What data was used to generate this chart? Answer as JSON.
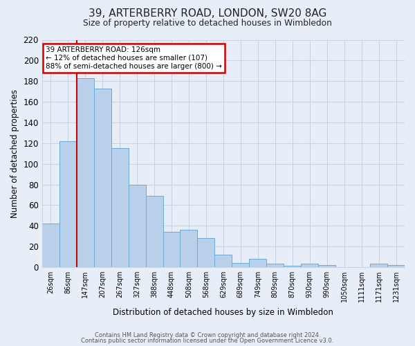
{
  "title": "39, ARTERBERRY ROAD, LONDON, SW20 8AG",
  "subtitle": "Size of property relative to detached houses in Wimbledon",
  "xlabel": "Distribution of detached houses by size in Wimbledon",
  "ylabel": "Number of detached properties",
  "bar_labels": [
    "26sqm",
    "86sqm",
    "147sqm",
    "207sqm",
    "267sqm",
    "327sqm",
    "388sqm",
    "448sqm",
    "508sqm",
    "568sqm",
    "629sqm",
    "689sqm",
    "749sqm",
    "809sqm",
    "870sqm",
    "930sqm",
    "990sqm",
    "1050sqm",
    "1111sqm",
    "1171sqm",
    "1231sqm"
  ],
  "bar_values": [
    42,
    122,
    183,
    173,
    115,
    80,
    69,
    34,
    36,
    28,
    12,
    4,
    8,
    3,
    1,
    3,
    2,
    0,
    0,
    3,
    2
  ],
  "bar_color": "#b8d0ea",
  "bar_edge_color": "#6aaad4",
  "ylim": [
    0,
    220
  ],
  "yticks": [
    0,
    20,
    40,
    60,
    80,
    100,
    120,
    140,
    160,
    180,
    200,
    220
  ],
  "annotation_title": "39 ARTERBERRY ROAD: 126sqm",
  "annotation_line1": "← 12% of detached houses are smaller (107)",
  "annotation_line2": "88% of semi-detached houses are larger (800) →",
  "annotation_box_color": "#ffffff",
  "annotation_box_edge": "#cc0000",
  "red_line_color": "#cc0000",
  "grid_color": "#c8d4e4",
  "background_color": "#e8eef8",
  "footer1": "Contains HM Land Registry data © Crown copyright and database right 2024.",
  "footer2": "Contains public sector information licensed under the Open Government Licence v3.0."
}
